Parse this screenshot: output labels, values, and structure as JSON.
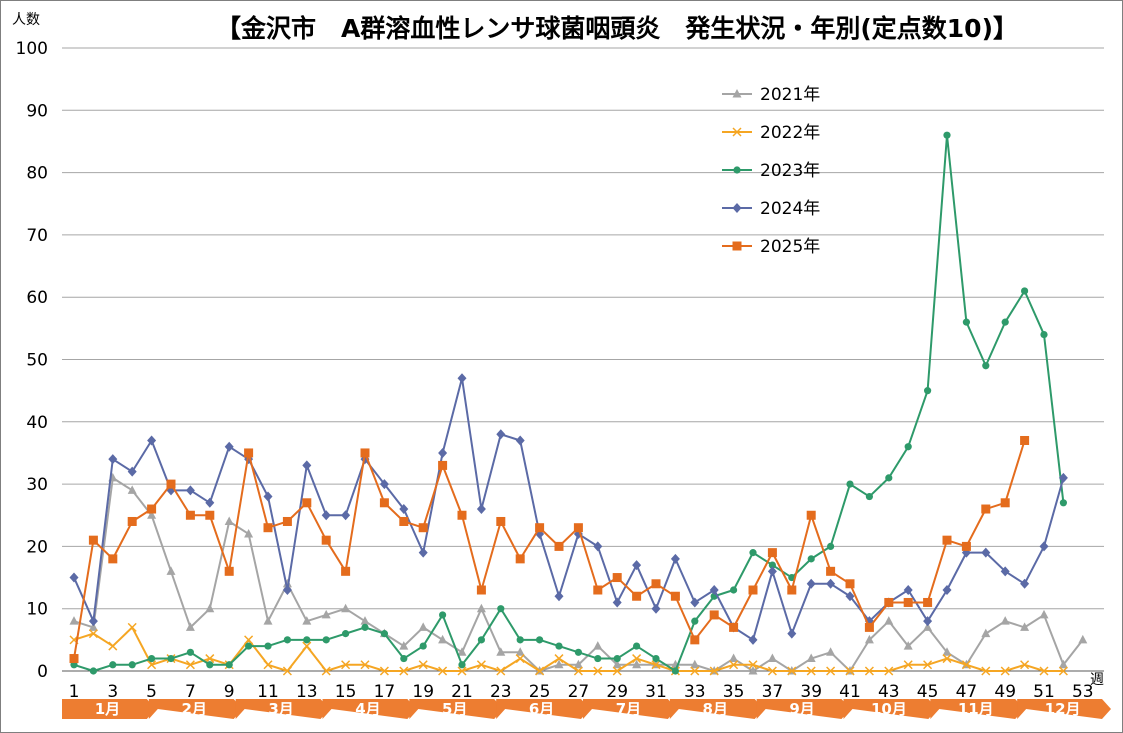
{
  "chart_data": {
    "type": "line",
    "title": "【金沢市　A群溶血性レンサ球菌咽頭炎　発生状況・年別(定点数10)】",
    "xlabel": "週",
    "ylabel": "人数",
    "ylim": [
      0,
      100
    ],
    "yticks": [
      0,
      10,
      20,
      30,
      40,
      50,
      60,
      70,
      80,
      90,
      100
    ],
    "xlim": [
      1,
      53
    ],
    "xticks": [
      1,
      3,
      5,
      7,
      9,
      11,
      13,
      15,
      17,
      19,
      21,
      23,
      25,
      27,
      29,
      31,
      33,
      35,
      37,
      39,
      41,
      43,
      45,
      47,
      49,
      51,
      53
    ],
    "grid": "horizontal",
    "legend_position": "top-center",
    "months": [
      "1月",
      "2月",
      "3月",
      "4月",
      "5月",
      "6月",
      "7月",
      "8月",
      "9月",
      "10月",
      "11月",
      "12月"
    ],
    "month_band_color": "#ed7d31",
    "series": [
      {
        "name": "2021年",
        "color": "#a5a5a5",
        "marker": "triangle",
        "values": [
          8,
          7,
          31,
          29,
          25,
          16,
          7,
          10,
          24,
          22,
          8,
          14,
          8,
          9,
          10,
          8,
          6,
          4,
          7,
          5,
          3,
          10,
          3,
          3,
          0,
          1,
          1,
          4,
          1,
          1,
          1,
          1,
          1,
          0,
          2,
          0,
          2,
          0,
          2,
          3,
          0,
          5,
          8,
          4,
          7,
          3,
          1,
          6,
          8,
          7,
          9,
          1,
          5
        ]
      },
      {
        "name": "2022年",
        "color": "#f5a623",
        "marker": "x",
        "values": [
          5,
          6,
          4,
          7,
          1,
          2,
          1,
          2,
          1,
          5,
          1,
          0,
          4,
          0,
          1,
          1,
          0,
          0,
          1,
          0,
          0,
          1,
          0,
          2,
          0,
          2,
          0,
          0,
          0,
          2,
          1,
          0,
          0,
          0,
          1,
          1,
          0,
          0,
          0,
          0,
          0,
          0,
          0,
          1,
          1,
          2,
          1,
          0,
          0,
          1,
          0,
          0
        ]
      },
      {
        "name": "2023年",
        "color": "#2e9a6a",
        "marker": "circle",
        "values": [
          1,
          0,
          1,
          1,
          2,
          2,
          3,
          1,
          1,
          4,
          4,
          5,
          5,
          5,
          6,
          7,
          6,
          2,
          4,
          9,
          1,
          5,
          10,
          5,
          5,
          4,
          3,
          2,
          2,
          4,
          2,
          0,
          8,
          12,
          13,
          19,
          17,
          15,
          18,
          20,
          30,
          28,
          31,
          36,
          45,
          86,
          56,
          49,
          56,
          61,
          54,
          27
        ]
      },
      {
        "name": "2024年",
        "color": "#5b6aa6",
        "marker": "diamond",
        "values": [
          15,
          8,
          34,
          32,
          37,
          29,
          29,
          27,
          36,
          34,
          28,
          13,
          33,
          25,
          25,
          34,
          30,
          26,
          19,
          35,
          47,
          26,
          38,
          37,
          22,
          12,
          22,
          20,
          11,
          17,
          10,
          18,
          11,
          13,
          7,
          5,
          16,
          6,
          14,
          14,
          12,
          8,
          11,
          13,
          8,
          13,
          19,
          19,
          16,
          14,
          20,
          31
        ]
      },
      {
        "name": "2025年",
        "color": "#e46c1d",
        "marker": "square",
        "values": [
          2,
          21,
          18,
          24,
          26,
          30,
          25,
          25,
          16,
          35,
          23,
          24,
          27,
          21,
          16,
          35,
          27,
          24,
          23,
          33,
          25,
          13,
          24,
          18,
          23,
          20,
          23,
          13,
          15,
          12,
          14,
          12,
          5,
          9,
          7,
          13,
          19,
          13,
          25,
          16,
          14,
          7,
          11,
          11,
          11,
          21,
          20,
          26,
          27,
          37
        ]
      }
    ]
  }
}
